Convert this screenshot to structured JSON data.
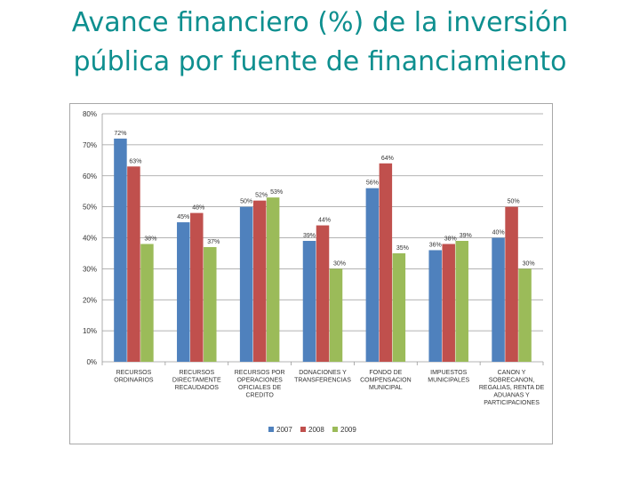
{
  "title_line1": "Avance financiero (%) de la inversión",
  "title_line2": "pública por fuente de financiamiento",
  "colors": {
    "s2007": "#4f81bd",
    "s2008": "#c0504d",
    "s2009": "#9bbb59",
    "grid": "#9a9a9a",
    "title": "#0e8f8f"
  },
  "chart_data": {
    "type": "bar",
    "title": "",
    "xlabel": "",
    "ylabel": "",
    "ylim": [
      0,
      80
    ],
    "yticks": [
      0,
      10,
      20,
      30,
      40,
      50,
      60,
      70,
      80
    ],
    "ytick_labels": [
      "0%",
      "10%",
      "20%",
      "30%",
      "40%",
      "50%",
      "60%",
      "70%",
      "80%"
    ],
    "grid": true,
    "legend": "bottom",
    "categories": [
      [
        "RECURSOS",
        "ORDINARIOS"
      ],
      [
        "RECURSOS",
        "DIRECTAMENTE",
        "RECAUDADOS"
      ],
      [
        "RECURSOS POR",
        "OPERACIONES",
        "OFICIALES DE",
        "CREDITO"
      ],
      [
        "DONACIONES Y",
        "TRANSFERENCIAS"
      ],
      [
        "FONDO DE",
        "COMPENSACION",
        "MUNICIPAL"
      ],
      [
        "IMPUESTOS",
        "MUNICIPALES"
      ],
      [
        "CANON Y",
        "SOBRECANON,",
        "REGALIAS, RENTA DE",
        "ADUANAS Y",
        "PARTICIPACIONES"
      ]
    ],
    "series": [
      {
        "name": "2007",
        "values": [
          72,
          45,
          50,
          39,
          56,
          36,
          40
        ],
        "labels": [
          "72%",
          "45%",
          "50%",
          "39%",
          "56%",
          "36%",
          "40%"
        ]
      },
      {
        "name": "2008",
        "values": [
          63,
          48,
          52,
          44,
          64,
          38,
          50
        ],
        "labels": [
          "63%",
          "48%",
          "52%",
          "44%",
          "64%",
          "38%",
          "50%"
        ]
      },
      {
        "name": "2009",
        "values": [
          38,
          37,
          53,
          30,
          35,
          39,
          30
        ],
        "labels": [
          "38%",
          "37%",
          "53%",
          "30%",
          "35%",
          "39%",
          "30%"
        ]
      }
    ]
  }
}
